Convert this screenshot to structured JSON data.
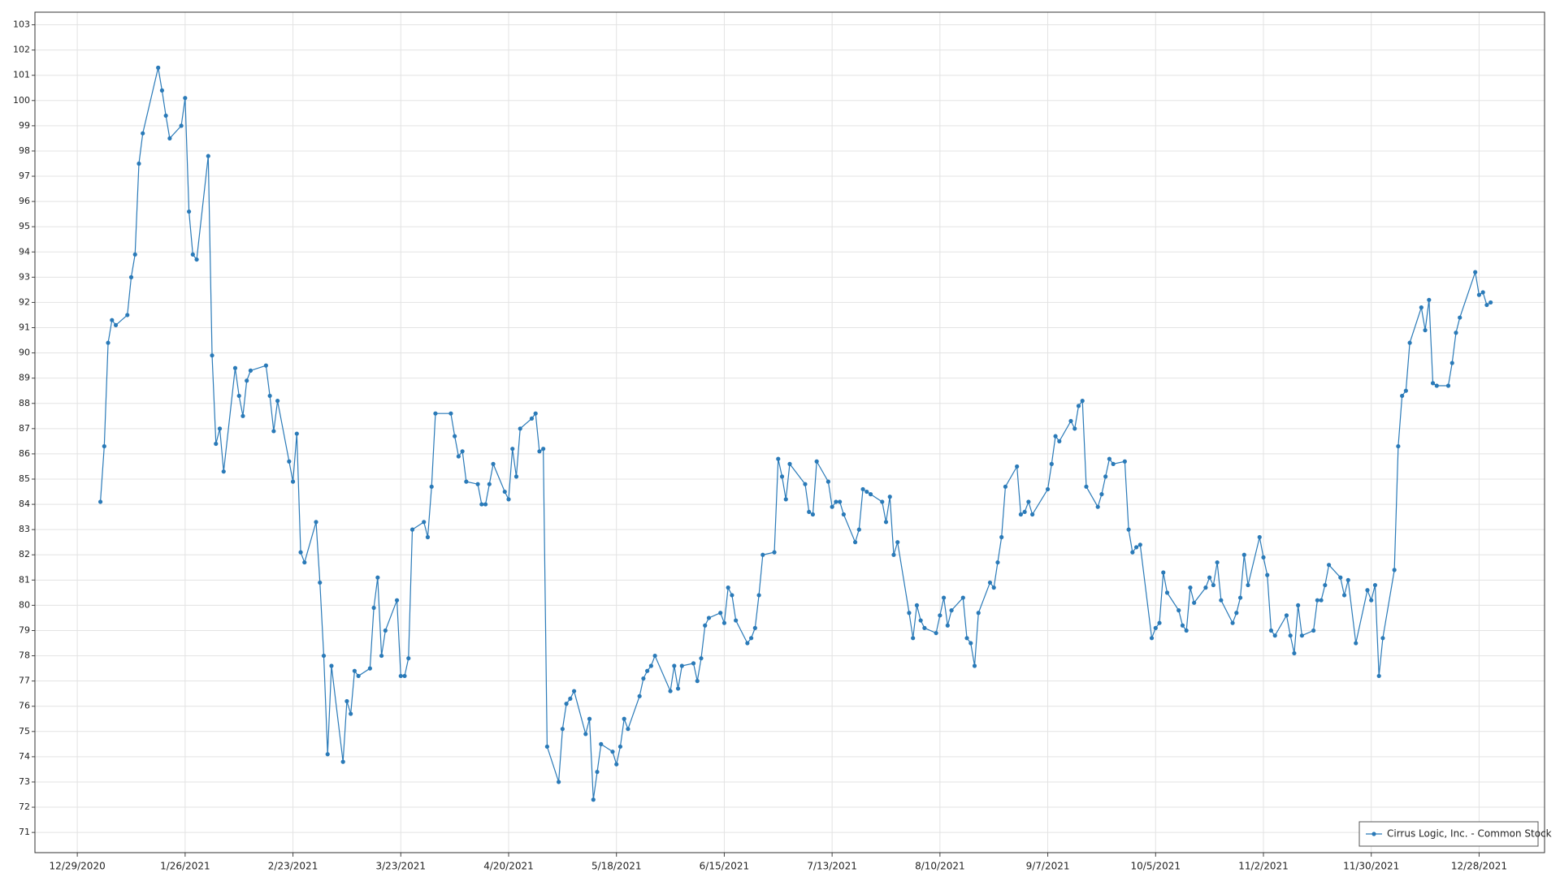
{
  "chart_data": {
    "type": "line",
    "x": [
      "2021-01-04",
      "2021-01-05",
      "2021-01-06",
      "2021-01-07",
      "2021-01-08",
      "2021-01-11",
      "2021-01-12",
      "2021-01-13",
      "2021-01-14",
      "2021-01-15",
      "2021-01-19",
      "2021-01-20",
      "2021-01-21",
      "2021-01-22",
      "2021-01-25",
      "2021-01-26",
      "2021-01-27",
      "2021-01-28",
      "2021-01-29",
      "2021-02-01",
      "2021-02-02",
      "2021-02-03",
      "2021-02-04",
      "2021-02-05",
      "2021-02-08",
      "2021-02-09",
      "2021-02-10",
      "2021-02-11",
      "2021-02-12",
      "2021-02-16",
      "2021-02-17",
      "2021-02-18",
      "2021-02-19",
      "2021-02-22",
      "2021-02-23",
      "2021-02-24",
      "2021-02-25",
      "2021-02-26",
      "2021-03-01",
      "2021-03-02",
      "2021-03-03",
      "2021-03-04",
      "2021-03-05",
      "2021-03-08",
      "2021-03-09",
      "2021-03-10",
      "2021-03-11",
      "2021-03-12",
      "2021-03-15",
      "2021-03-16",
      "2021-03-17",
      "2021-03-18",
      "2021-03-19",
      "2021-03-22",
      "2021-03-23",
      "2021-03-24",
      "2021-03-25",
      "2021-03-26",
      "2021-03-29",
      "2021-03-30",
      "2021-03-31",
      "2021-04-01",
      "2021-04-05",
      "2021-04-06",
      "2021-04-07",
      "2021-04-08",
      "2021-04-09",
      "2021-04-12",
      "2021-04-13",
      "2021-04-14",
      "2021-04-15",
      "2021-04-16",
      "2021-04-19",
      "2021-04-20",
      "2021-04-21",
      "2021-04-22",
      "2021-04-23",
      "2021-04-26",
      "2021-04-27",
      "2021-04-28",
      "2021-04-29",
      "2021-04-30",
      "2021-05-03",
      "2021-05-04",
      "2021-05-05",
      "2021-05-06",
      "2021-05-07",
      "2021-05-10",
      "2021-05-11",
      "2021-05-12",
      "2021-05-13",
      "2021-05-14",
      "2021-05-17",
      "2021-05-18",
      "2021-05-19",
      "2021-05-20",
      "2021-05-21",
      "2021-05-24",
      "2021-05-25",
      "2021-05-26",
      "2021-05-27",
      "2021-05-28",
      "2021-06-01",
      "2021-06-02",
      "2021-06-03",
      "2021-06-04",
      "2021-06-07",
      "2021-06-08",
      "2021-06-09",
      "2021-06-10",
      "2021-06-11",
      "2021-06-14",
      "2021-06-15",
      "2021-06-16",
      "2021-06-17",
      "2021-06-18",
      "2021-06-21",
      "2021-06-22",
      "2021-06-23",
      "2021-06-24",
      "2021-06-25",
      "2021-06-28",
      "2021-06-29",
      "2021-06-30",
      "2021-07-01",
      "2021-07-02",
      "2021-07-06",
      "2021-07-07",
      "2021-07-08",
      "2021-07-09",
      "2021-07-12",
      "2021-07-13",
      "2021-07-14",
      "2021-07-15",
      "2021-07-16",
      "2021-07-19",
      "2021-07-20",
      "2021-07-21",
      "2021-07-22",
      "2021-07-23",
      "2021-07-26",
      "2021-07-27",
      "2021-07-28",
      "2021-07-29",
      "2021-07-30",
      "2021-08-02",
      "2021-08-03",
      "2021-08-04",
      "2021-08-05",
      "2021-08-06",
      "2021-08-09",
      "2021-08-10",
      "2021-08-11",
      "2021-08-12",
      "2021-08-13",
      "2021-08-16",
      "2021-08-17",
      "2021-08-18",
      "2021-08-19",
      "2021-08-20",
      "2021-08-23",
      "2021-08-24",
      "2021-08-25",
      "2021-08-26",
      "2021-08-27",
      "2021-08-30",
      "2021-08-31",
      "2021-09-01",
      "2021-09-02",
      "2021-09-03",
      "2021-09-07",
      "2021-09-08",
      "2021-09-09",
      "2021-09-10",
      "2021-09-13",
      "2021-09-14",
      "2021-09-15",
      "2021-09-16",
      "2021-09-17",
      "2021-09-20",
      "2021-09-21",
      "2021-09-22",
      "2021-09-23",
      "2021-09-24",
      "2021-09-27",
      "2021-09-28",
      "2021-09-29",
      "2021-09-30",
      "2021-10-01",
      "2021-10-04",
      "2021-10-05",
      "2021-10-06",
      "2021-10-07",
      "2021-10-08",
      "2021-10-11",
      "2021-10-12",
      "2021-10-13",
      "2021-10-14",
      "2021-10-15",
      "2021-10-18",
      "2021-10-19",
      "2021-10-20",
      "2021-10-21",
      "2021-10-22",
      "2021-10-25",
      "2021-10-26",
      "2021-10-27",
      "2021-10-28",
      "2021-10-29",
      "2021-11-01",
      "2021-11-02",
      "2021-11-03",
      "2021-11-04",
      "2021-11-05",
      "2021-11-08",
      "2021-11-09",
      "2021-11-10",
      "2021-11-11",
      "2021-11-12",
      "2021-11-15",
      "2021-11-16",
      "2021-11-17",
      "2021-11-18",
      "2021-11-19",
      "2021-11-22",
      "2021-11-23",
      "2021-11-24",
      "2021-11-26",
      "2021-11-29",
      "2021-11-30",
      "2021-12-01",
      "2021-12-02",
      "2021-12-03",
      "2021-12-06",
      "2021-12-07",
      "2021-12-08",
      "2021-12-09",
      "2021-12-10",
      "2021-12-13",
      "2021-12-14",
      "2021-12-15",
      "2021-12-16",
      "2021-12-17",
      "2021-12-20",
      "2021-12-21",
      "2021-12-22",
      "2021-12-23",
      "2021-12-27",
      "2021-12-28",
      "2021-12-29",
      "2021-12-30",
      "2021-12-31"
    ],
    "series": [
      {
        "name": "Cirrus Logic, Inc. - Common Stock",
        "color": "#2a7ab8",
        "values": [
          84.1,
          86.3,
          90.4,
          91.3,
          91.1,
          91.5,
          93.0,
          93.9,
          97.5,
          98.7,
          101.3,
          100.4,
          99.4,
          98.5,
          99.0,
          100.1,
          95.6,
          93.9,
          93.7,
          97.8,
          89.9,
          86.4,
          87.0,
          85.3,
          89.4,
          88.3,
          87.5,
          88.9,
          89.3,
          89.5,
          88.3,
          86.9,
          88.1,
          85.7,
          84.9,
          86.8,
          82.1,
          81.7,
          83.3,
          80.9,
          78.0,
          74.1,
          77.6,
          73.8,
          76.2,
          75.7,
          77.4,
          77.2,
          77.5,
          79.9,
          81.1,
          78.0,
          79.0,
          80.2,
          77.2,
          77.2,
          77.9,
          83.0,
          83.3,
          82.7,
          84.7,
          87.6,
          87.6,
          86.7,
          85.9,
          86.1,
          84.9,
          84.8,
          84.0,
          84.0,
          84.8,
          85.6,
          84.5,
          84.2,
          86.2,
          85.1,
          87.0,
          87.4,
          87.6,
          86.1,
          86.2,
          74.4,
          73.0,
          75.1,
          76.1,
          76.3,
          76.6,
          74.9,
          75.5,
          72.3,
          73.4,
          74.5,
          74.2,
          73.7,
          74.4,
          75.5,
          75.1,
          76.4,
          77.1,
          77.4,
          77.6,
          78.0,
          76.6,
          77.6,
          76.7,
          77.6,
          77.7,
          77.0,
          77.9,
          79.2,
          79.5,
          79.7,
          79.3,
          80.7,
          80.4,
          79.4,
          78.5,
          78.7,
          79.1,
          80.4,
          82.0,
          82.1,
          85.8,
          85.1,
          84.2,
          85.6,
          84.8,
          83.7,
          83.6,
          85.7,
          84.9,
          83.9,
          84.1,
          84.1,
          83.6,
          82.5,
          83.0,
          84.6,
          84.5,
          84.4,
          84.1,
          83.3,
          84.3,
          82.0,
          82.5,
          79.7,
          78.7,
          80.0,
          79.4,
          79.1,
          78.9,
          79.6,
          80.3,
          79.2,
          79.8,
          80.3,
          78.7,
          78.5,
          77.6,
          79.7,
          80.9,
          80.7,
          81.7,
          82.7,
          84.7,
          85.5,
          83.6,
          83.7,
          84.1,
          83.6,
          84.6,
          85.6,
          86.7,
          86.5,
          87.3,
          87.0,
          87.9,
          88.1,
          84.7,
          83.9,
          84.4,
          85.1,
          85.8,
          85.6,
          85.7,
          83.0,
          82.1,
          82.3,
          82.4,
          78.7,
          79.1,
          79.3,
          81.3,
          80.5,
          79.8,
          79.2,
          79.0,
          80.7,
          80.1,
          80.7,
          81.1,
          80.8,
          81.7,
          80.2,
          79.3,
          79.7,
          80.3,
          82.0,
          80.8,
          82.7,
          81.9,
          81.2,
          79.0,
          78.8,
          79.6,
          78.8,
          78.1,
          80.0,
          78.8,
          79.0,
          80.2,
          80.2,
          80.8,
          81.6,
          81.1,
          80.4,
          81.0,
          78.5,
          80.6,
          80.2,
          80.8,
          77.2,
          78.7,
          81.4,
          86.3,
          88.3,
          88.5,
          90.4,
          91.8,
          90.9,
          92.1,
          88.8,
          88.7,
          88.7,
          89.6,
          90.8,
          91.4,
          93.2,
          92.3,
          92.4,
          91.9,
          92.0
        ]
      }
    ],
    "xlim": [
      "2020-12-18",
      "2022-01-14"
    ],
    "xticks": [
      {
        "value": "2020-12-29",
        "label": "12/29/2020"
      },
      {
        "value": "2021-01-26",
        "label": "1/26/2021"
      },
      {
        "value": "2021-02-23",
        "label": "2/23/2021"
      },
      {
        "value": "2021-03-23",
        "label": "3/23/2021"
      },
      {
        "value": "2021-04-20",
        "label": "4/20/2021"
      },
      {
        "value": "2021-05-18",
        "label": "5/18/2021"
      },
      {
        "value": "2021-06-15",
        "label": "6/15/2021"
      },
      {
        "value": "2021-07-13",
        "label": "7/13/2021"
      },
      {
        "value": "2021-08-10",
        "label": "8/10/2021"
      },
      {
        "value": "2021-09-07",
        "label": "9/7/2021"
      },
      {
        "value": "2021-10-05",
        "label": "10/5/2021"
      },
      {
        "value": "2021-11-02",
        "label": "11/2/2021"
      },
      {
        "value": "2021-11-30",
        "label": "11/30/2021"
      },
      {
        "value": "2021-12-28",
        "label": "12/28/2021"
      }
    ],
    "ylim": [
      70.2,
      103.5
    ],
    "yticks": [
      71,
      72,
      73,
      74,
      75,
      76,
      77,
      78,
      79,
      80,
      81,
      82,
      83,
      84,
      85,
      86,
      87,
      88,
      89,
      90,
      91,
      92,
      93,
      94,
      95,
      96,
      97,
      98,
      99,
      100,
      101,
      102,
      103
    ],
    "grid": true,
    "legend": "bottom-right"
  }
}
